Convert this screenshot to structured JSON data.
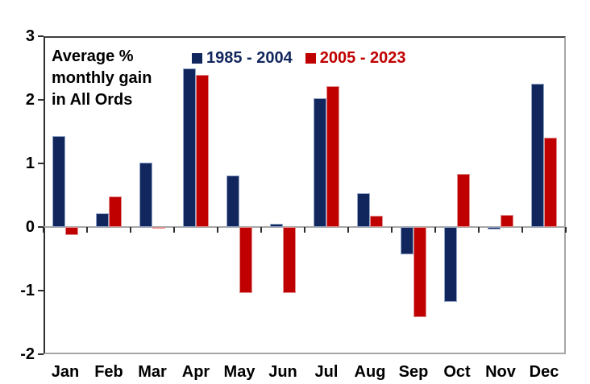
{
  "title": {
    "line1": "Average %",
    "line2": "monthly gain",
    "line3": "in All Ords"
  },
  "legend": {
    "items": [
      {
        "label": "1985 - 2004",
        "color": "#12265E"
      },
      {
        "label": "2005 - 2023",
        "color": "#C00000"
      }
    ]
  },
  "chart_data": {
    "type": "bar",
    "title": "Average % monthly gain in All Ords",
    "categories": [
      "Jan",
      "Feb",
      "Mar",
      "Apr",
      "May",
      "Jun",
      "Jul",
      "Aug",
      "Sep",
      "Oct",
      "Nov",
      "Dec"
    ],
    "series": [
      {
        "name": "1985 - 2004",
        "color": "#12265E",
        "border_color": "#93A5C7",
        "values": [
          1.43,
          0.21,
          1.01,
          2.49,
          0.81,
          0.05,
          2.02,
          0.53,
          -0.43,
          -1.18,
          -0.04,
          2.25
        ]
      },
      {
        "name": "2005 - 2023",
        "color": "#C00000",
        "border_color": "#E09090",
        "values": [
          -0.13,
          0.48,
          -0.03,
          2.39,
          -1.04,
          -1.04,
          2.21,
          0.18,
          -1.42,
          0.84,
          0.19,
          1.4
        ]
      }
    ],
    "xlabel": "",
    "ylabel": "",
    "ylim": [
      -2,
      3
    ],
    "yticks": [
      3,
      2,
      1,
      0,
      -1,
      -2
    ],
    "grid": false,
    "legend_position": "top-center",
    "colors": {
      "plot_border_dark": "#3F3F3F",
      "plot_border_light": "#A6A6A6",
      "zero_line": "#A6A6A6",
      "tick": "#2E2E2E",
      "text": "#000000",
      "background": "#FFFFFF"
    }
  }
}
